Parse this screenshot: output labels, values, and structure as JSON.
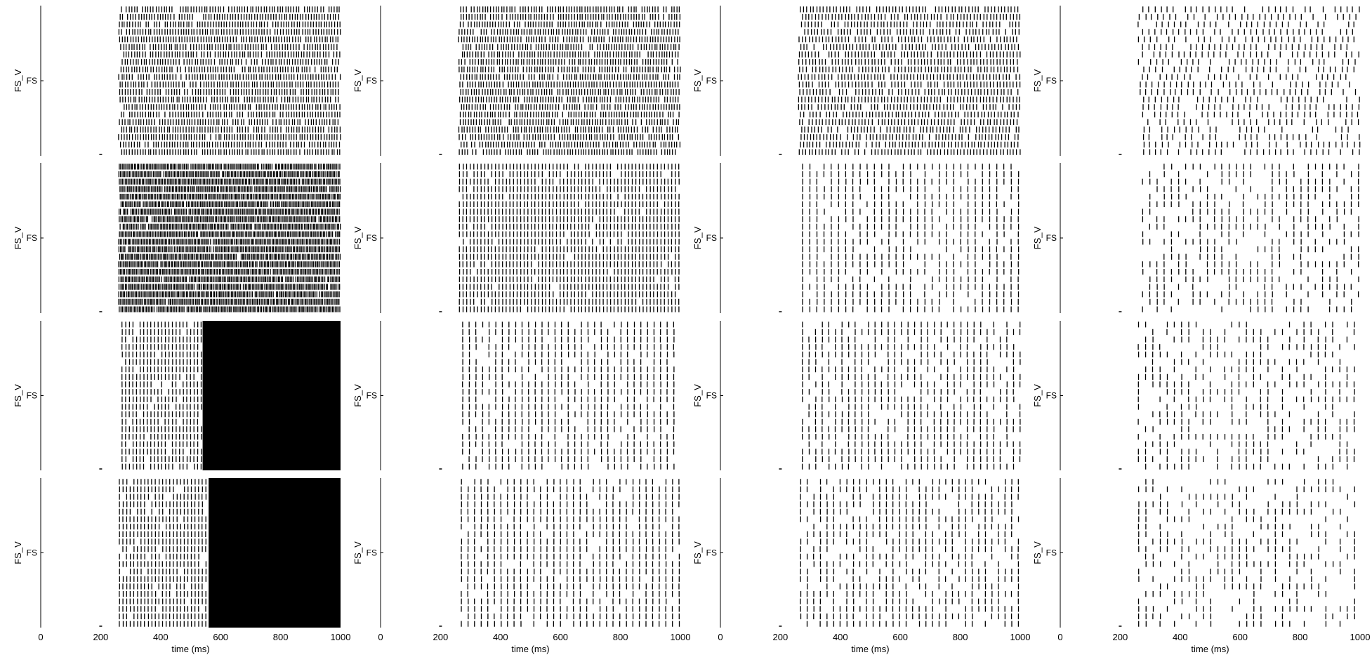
{
  "figure": {
    "columns": 4,
    "rows": 4,
    "ylabel": "FS_V",
    "ytick_label": "FS",
    "xlabel": "time (ms)",
    "xticks": [
      0,
      200,
      400,
      600,
      800,
      1000
    ],
    "line_color": "#000000",
    "background": "#ffffff"
  },
  "chart_data": {
    "type": "raster",
    "description_rows": "spike rasters of FS neuron voltage; each of 4x4 panels shows ~20 trial rows of spike ticks over time",
    "xlim": [
      0,
      1000
    ],
    "xlabel": "time (ms)",
    "ylabel": "FS_V",
    "yticks": [
      "FS"
    ],
    "rows_per_panel": 20,
    "onset_ms": 260,
    "panels": [
      {
        "col": 0,
        "row": 0,
        "pattern": "dense",
        "period_ms": 9,
        "dropout": 0.05,
        "jitter_ms": 3
      },
      {
        "col": 0,
        "row": 1,
        "pattern": "dense",
        "period_ms": 5,
        "dropout": 0.02,
        "jitter_ms": 2
      },
      {
        "col": 0,
        "row": 2,
        "pattern": "saturated",
        "period_ms": 12,
        "saturate_from_ms": 540,
        "dropout": 0.1
      },
      {
        "col": 0,
        "row": 3,
        "pattern": "saturated",
        "period_ms": 12,
        "saturate_from_ms": 560,
        "dropout": 0.1
      },
      {
        "col": 1,
        "row": 0,
        "pattern": "dense",
        "period_ms": 9,
        "dropout": 0.08,
        "jitter_ms": 3
      },
      {
        "col": 1,
        "row": 1,
        "pattern": "sync",
        "period_ms": 12,
        "dropout": 0.05
      },
      {
        "col": 1,
        "row": 2,
        "pattern": "sync",
        "period_ms": 22,
        "dropout": 0.12
      },
      {
        "col": 1,
        "row": 3,
        "pattern": "sync",
        "period_ms": 22,
        "dropout": 0.1
      },
      {
        "col": 2,
        "row": 0,
        "pattern": "dense",
        "period_ms": 11,
        "dropout": 0.1,
        "jitter_ms": 3
      },
      {
        "col": 2,
        "row": 1,
        "pattern": "sync",
        "period_ms": 24,
        "dropout": 0.15
      },
      {
        "col": 2,
        "row": 2,
        "pattern": "sync",
        "period_ms": 22,
        "dropout": 0.2
      },
      {
        "col": 2,
        "row": 3,
        "pattern": "sync",
        "period_ms": 22,
        "dropout": 0.25
      },
      {
        "col": 3,
        "row": 0,
        "pattern": "sparse",
        "period_ms": 20,
        "dropout": 0.25,
        "jitter_ms": 4
      },
      {
        "col": 3,
        "row": 1,
        "pattern": "sync",
        "period_ms": 24,
        "dropout": 0.35
      },
      {
        "col": 3,
        "row": 2,
        "pattern": "sync",
        "period_ms": 24,
        "dropout": 0.4
      },
      {
        "col": 3,
        "row": 3,
        "pattern": "sync",
        "period_ms": 24,
        "dropout": 0.45
      }
    ]
  }
}
